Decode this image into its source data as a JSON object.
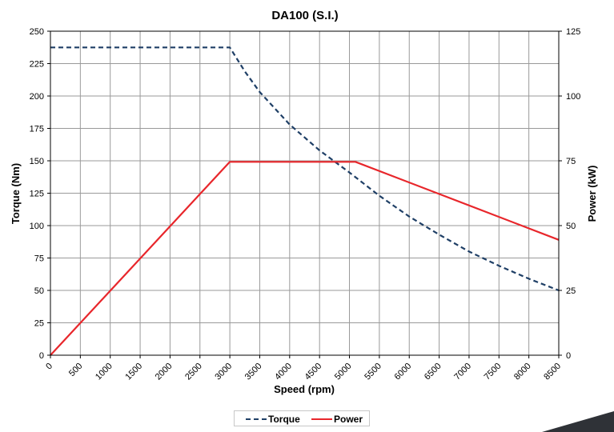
{
  "chart_data": {
    "type": "line",
    "title": "DA100 (S.I.)",
    "xlabel": "Speed (rpm)",
    "ylabel": "Torque (Nm)",
    "y2label": "Power (kW)",
    "xlim": [
      0,
      8500
    ],
    "ylim": [
      0,
      250
    ],
    "y2lim": [
      0,
      125
    ],
    "x_ticks": [
      "0",
      "500",
      "1000",
      "1500",
      "2000",
      "2500",
      "3000",
      "3500",
      "4000",
      "4500",
      "5000",
      "5500",
      "6000",
      "6500",
      "7000",
      "7500",
      "8000",
      "8500"
    ],
    "y_ticks": [
      "0",
      "25",
      "50",
      "75",
      "100",
      "125",
      "150",
      "175",
      "200",
      "225",
      "250"
    ],
    "y2_ticks": [
      "0",
      "25",
      "50",
      "75",
      "100",
      "125"
    ],
    "grid": true,
    "legend_position": "bottom-center",
    "series": [
      {
        "name": "Torque",
        "axis": "left",
        "style": "dashed",
        "color": "#1f3f66",
        "x": [
          0,
          3000,
          3250,
          3500,
          4000,
          4500,
          5000,
          5500,
          6000,
          6500,
          7000,
          7500,
          8000,
          8500
        ],
        "values": [
          237.5,
          237.5,
          219,
          203,
          178,
          158,
          141,
          123,
          107,
          93,
          80,
          69,
          59,
          50
        ]
      },
      {
        "name": "Power",
        "axis": "right",
        "style": "solid",
        "color": "#e8262b",
        "x": [
          0,
          3000,
          5100,
          8500
        ],
        "values": [
          0,
          74.6,
          74.6,
          44.5
        ]
      }
    ]
  },
  "legend": {
    "torque_label": "Torque",
    "power_label": "Power"
  }
}
